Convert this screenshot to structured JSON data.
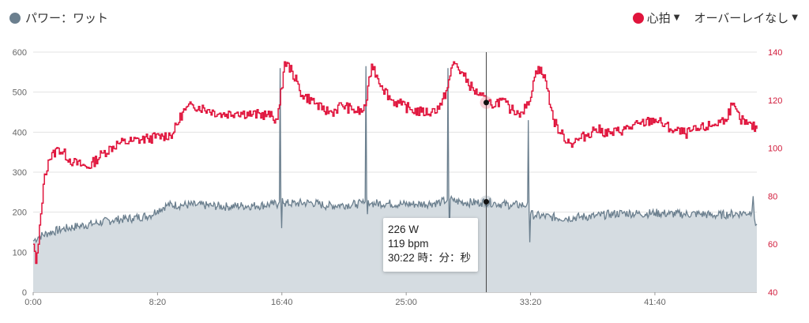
{
  "legend": {
    "power_label": "パワー：ワット",
    "power_color": "#6b7f8e",
    "hr_label": "心拍",
    "hr_color": "#e0143c",
    "overlay_label": "オーバーレイなし"
  },
  "tooltip": {
    "power": "226 W",
    "heart_rate": "119 bpm",
    "time": "30:22 時：分：秒"
  },
  "chart_data": {
    "type": "line",
    "x_tick_labels": [
      "0:00",
      "8:20",
      "16:40",
      "25:00",
      "33:20",
      "41:40"
    ],
    "x_tick_values_sec": [
      0,
      500,
      1000,
      1500,
      2000,
      2500
    ],
    "x_range_sec": [
      0,
      2910
    ],
    "y_left": {
      "ticks": [
        0,
        100,
        200,
        300,
        400,
        500,
        600
      ],
      "range": [
        0,
        600
      ]
    },
    "y_right": {
      "ticks": [
        40,
        60,
        80,
        100,
        120,
        140
      ],
      "range": [
        40,
        140
      ]
    },
    "cursor": {
      "x_sec": 1822,
      "power": 226,
      "heart_rate": 119
    },
    "power_series": {
      "axis": "left",
      "points": [
        [
          0,
          128
        ],
        [
          20,
          138
        ],
        [
          60,
          148
        ],
        [
          120,
          158
        ],
        [
          180,
          165
        ],
        [
          250,
          172
        ],
        [
          320,
          180
        ],
        [
          400,
          185
        ],
        [
          470,
          192
        ],
        [
          500,
          205
        ],
        [
          540,
          218
        ],
        [
          600,
          218
        ],
        [
          660,
          218
        ],
        [
          720,
          216
        ],
        [
          780,
          214
        ],
        [
          840,
          216
        ],
        [
          900,
          216
        ],
        [
          960,
          220
        ],
        [
          985,
          220
        ],
        [
          990,
          225
        ],
        [
          993,
          560
        ],
        [
          996,
          235
        ],
        [
          999,
          160
        ],
        [
          1002,
          235
        ],
        [
          1010,
          222
        ],
        [
          1060,
          222
        ],
        [
          1120,
          224
        ],
        [
          1180,
          216
        ],
        [
          1240,
          218
        ],
        [
          1300,
          220
        ],
        [
          1330,
          222
        ],
        [
          1335,
          226
        ],
        [
          1338,
          565
        ],
        [
          1341,
          240
        ],
        [
          1344,
          195
        ],
        [
          1347,
          230
        ],
        [
          1360,
          222
        ],
        [
          1420,
          222
        ],
        [
          1480,
          220
        ],
        [
          1540,
          220
        ],
        [
          1600,
          222
        ],
        [
          1640,
          225
        ],
        [
          1665,
          230
        ],
        [
          1668,
          560
        ],
        [
          1671,
          248
        ],
        [
          1674,
          145
        ],
        [
          1677,
          232
        ],
        [
          1690,
          228
        ],
        [
          1740,
          224
        ],
        [
          1800,
          224
        ],
        [
          1822,
          226
        ],
        [
          1860,
          222
        ],
        [
          1920,
          218
        ],
        [
          1960,
          218
        ],
        [
          1985,
          218
        ],
        [
          1988,
          225
        ],
        [
          1991,
          430
        ],
        [
          1994,
          205
        ],
        [
          1997,
          125
        ],
        [
          2000,
          195
        ],
        [
          2020,
          192
        ],
        [
          2080,
          188
        ],
        [
          2140,
          185
        ],
        [
          2200,
          188
        ],
        [
          2260,
          190
        ],
        [
          2320,
          195
        ],
        [
          2380,
          198
        ],
        [
          2440,
          196
        ],
        [
          2500,
          198
        ],
        [
          2560,
          196
        ],
        [
          2620,
          195
        ],
        [
          2680,
          196
        ],
        [
          2740,
          192
        ],
        [
          2800,
          195
        ],
        [
          2860,
          198
        ],
        [
          2890,
          200
        ],
        [
          2895,
          240
        ],
        [
          2900,
          185
        ],
        [
          2910,
          170
        ]
      ]
    },
    "hr_series": {
      "axis": "right",
      "points": [
        [
          0,
          60
        ],
        [
          10,
          52
        ],
        [
          20,
          60
        ],
        [
          40,
          85
        ],
        [
          60,
          95
        ],
        [
          100,
          100
        ],
        [
          160,
          94
        ],
        [
          220,
          92
        ],
        [
          280,
          98
        ],
        [
          340,
          102
        ],
        [
          400,
          103
        ],
        [
          460,
          104
        ],
        [
          520,
          105
        ],
        [
          560,
          106
        ],
        [
          600,
          115
        ],
        [
          640,
          118
        ],
        [
          700,
          116
        ],
        [
          760,
          114
        ],
        [
          820,
          115
        ],
        [
          880,
          114
        ],
        [
          940,
          114
        ],
        [
          980,
          112
        ],
        [
          990,
          118
        ],
        [
          1010,
          136
        ],
        [
          1040,
          132
        ],
        [
          1080,
          122
        ],
        [
          1120,
          120
        ],
        [
          1160,
          116
        ],
        [
          1200,
          115
        ],
        [
          1240,
          118
        ],
        [
          1280,
          116
        ],
        [
          1320,
          115
        ],
        [
          1340,
          120
        ],
        [
          1360,
          135
        ],
        [
          1400,
          126
        ],
        [
          1440,
          120
        ],
        [
          1480,
          118
        ],
        [
          1520,
          116
        ],
        [
          1560,
          115
        ],
        [
          1600,
          115
        ],
        [
          1640,
          118
        ],
        [
          1660,
          124
        ],
        [
          1690,
          136
        ],
        [
          1730,
          130
        ],
        [
          1770,
          124
        ],
        [
          1800,
          122
        ],
        [
          1822,
          119
        ],
        [
          1840,
          118
        ],
        [
          1880,
          120
        ],
        [
          1920,
          116
        ],
        [
          1960,
          115
        ],
        [
          1990,
          118
        ],
        [
          2010,
          128
        ],
        [
          2030,
          134
        ],
        [
          2060,
          128
        ],
        [
          2090,
          112
        ],
        [
          2120,
          106
        ],
        [
          2160,
          102
        ],
        [
          2200,
          104
        ],
        [
          2260,
          108
        ],
        [
          2320,
          106
        ],
        [
          2380,
          108
        ],
        [
          2440,
          110
        ],
        [
          2500,
          112
        ],
        [
          2560,
          108
        ],
        [
          2620,
          106
        ],
        [
          2680,
          108
        ],
        [
          2740,
          110
        ],
        [
          2780,
          112
        ],
        [
          2810,
          118
        ],
        [
          2840,
          112
        ],
        [
          2870,
          110
        ],
        [
          2910,
          108
        ]
      ]
    }
  }
}
